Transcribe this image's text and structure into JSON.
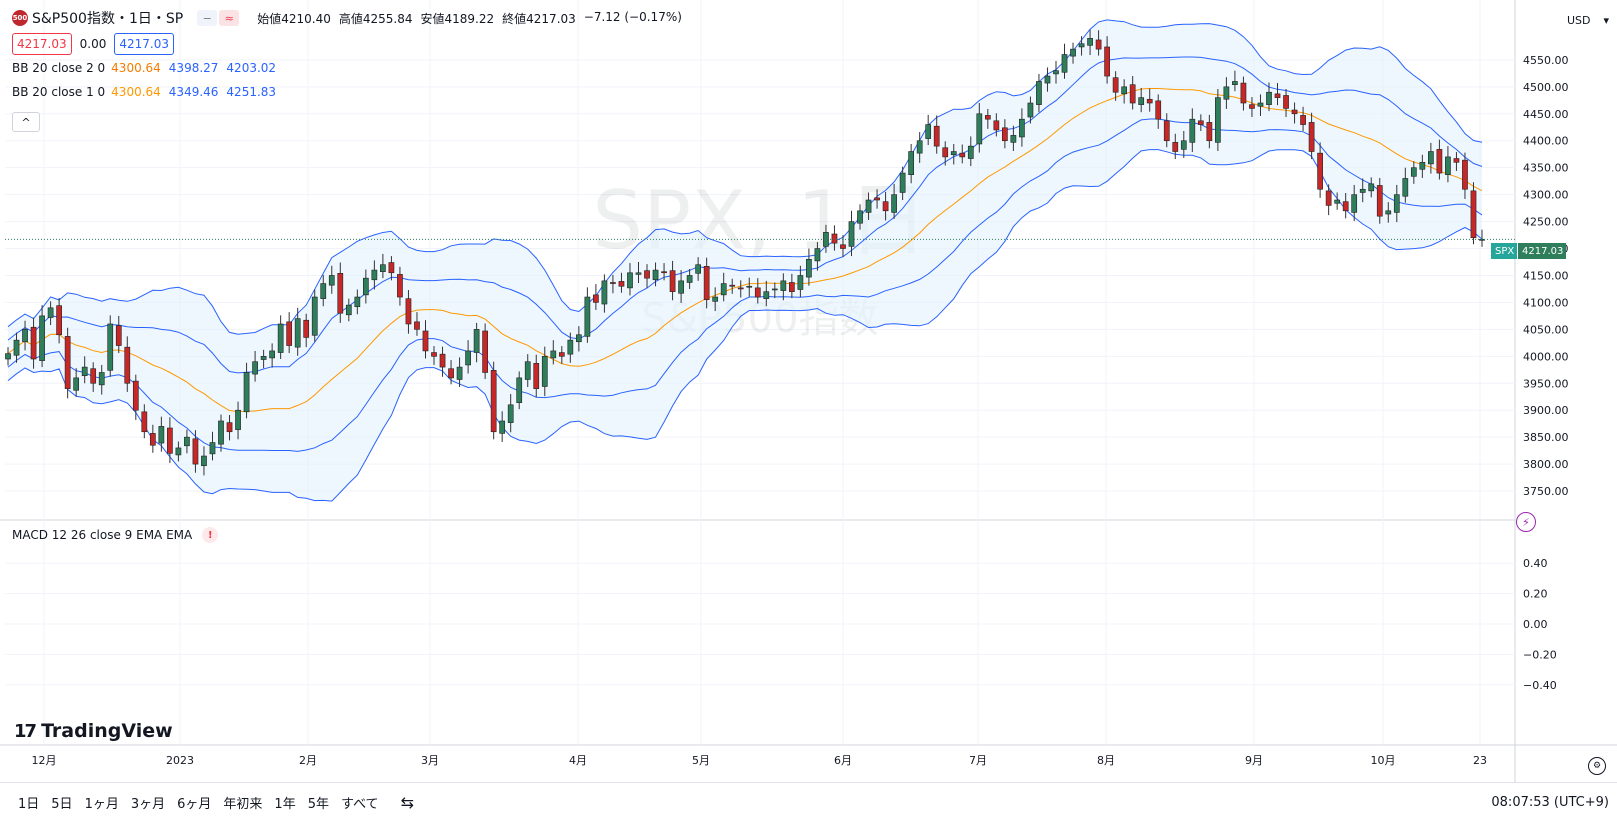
{
  "header": {
    "badge": "500",
    "title": "S&P500指数・1日・SP",
    "btn1": "−",
    "btn2": "≈",
    "ohlc": [
      {
        "label": "始値",
        "value": "4210.40"
      },
      {
        "label": "高値",
        "value": "4255.84"
      },
      {
        "label": "安値",
        "value": "4189.22"
      },
      {
        "label": "終値",
        "value": "4217.03"
      }
    ],
    "change": "−7.12 (−0.17%)"
  },
  "price_boxes": {
    "bid": "4217.03",
    "spread": "0.00",
    "ask": "4217.03"
  },
  "indicators": [
    {
      "name": "BB 20 close 2 0",
      "basis": "4300.64",
      "upper": "4398.27",
      "lower": "4203.02"
    },
    {
      "name": "BB 20 close 1 0",
      "basis": "4300.64",
      "upper": "4349.46",
      "lower": "4251.83"
    }
  ],
  "collapse_icon": "^",
  "watermark": {
    "line1": "SPX, 1日",
    "line2": "S&P500指数"
  },
  "macd_label": "MACD 12 26 close 9 EMA EMA",
  "macd_warning": "!",
  "currency": "USD",
  "currency_icon": "chevron-down-icon",
  "last_price": {
    "symbol": "SPX",
    "value": "4217.03"
  },
  "logo": {
    "mark": "17",
    "text": "TradingView"
  },
  "periods": [
    "1日",
    "5日",
    "1ヶ月",
    "3ヶ月",
    "6ヶ月",
    "年初来",
    "1年",
    "5年",
    "すべて"
  ],
  "calendar_icon": "date-range-icon",
  "clock": "08:07:53 (UTC+9)",
  "colors": {
    "up": "#2e7d5b",
    "down": "#c62828",
    "band_fill": "#e3f2fd",
    "band_line": "#2962ff",
    "basis": "#ff9800"
  },
  "chart_data": [
    {
      "type": "candlestick",
      "title": "S&P500指数・1日・SP",
      "ylim": [
        3700,
        4650
      ],
      "y_ticks": [
        "3750.00",
        "3800.00",
        "3850.00",
        "3900.00",
        "3950.00",
        "4000.00",
        "4050.00",
        "4100.00",
        "4150.00",
        "4200.00",
        "4250.00",
        "4300.00",
        "4350.00",
        "4400.00",
        "4450.00",
        "4500.00",
        "4550.00"
      ],
      "x_ticks": [
        "12月",
        "2023",
        "2月",
        "3月",
        "4月",
        "5月",
        "6月",
        "7月",
        "8月",
        "9月",
        "10月",
        "23"
      ],
      "grid": true,
      "close_series": [
        4005,
        4030,
        4050,
        3995,
        4075,
        4090,
        4040,
        3940,
        3960,
        3980,
        3950,
        3970,
        4060,
        4020,
        3950,
        3900,
        3860,
        3835,
        3870,
        3820,
        3830,
        3850,
        3800,
        3815,
        3840,
        3880,
        3860,
        3900,
        3970,
        3990,
        4000,
        4010,
        4060,
        4020,
        4070,
        4035,
        4110,
        4135,
        4150,
        4080,
        4095,
        4110,
        4145,
        4160,
        4170,
        4155,
        4110,
        4060,
        4050,
        4010,
        4000,
        3980,
        3960,
        3980,
        4010,
        4050,
        3970,
        3860,
        3880,
        3910,
        3960,
        3990,
        3940,
        4000,
        4010,
        4000,
        4030,
        4040,
        4110,
        4100,
        4140,
        4135,
        4130,
        4155,
        4155,
        4145,
        4160,
        4155,
        4120,
        4140,
        4150,
        4170,
        4105,
        4110,
        4135,
        4130,
        4125,
        4130,
        4110,
        4120,
        4125,
        4140,
        4120,
        4150,
        4180,
        4200,
        4230,
        4210,
        4200,
        4250,
        4270,
        4290,
        4290,
        4270,
        4300,
        4340,
        4380,
        4400,
        4430,
        4390,
        4370,
        4380,
        4370,
        4390,
        4450,
        4440,
        4420,
        4400,
        4410,
        4440,
        4470,
        4510,
        4520,
        4530,
        4560,
        4570,
        4580,
        4590,
        4570,
        4520,
        4490,
        4500,
        4470,
        4480,
        4470,
        4440,
        4400,
        4380,
        4400,
        4440,
        4430,
        4400,
        4480,
        4500,
        4510,
        4470,
        4460,
        4470,
        4490,
        4480,
        4460,
        4450,
        4430,
        4380,
        4310,
        4280,
        4290,
        4270,
        4300,
        4310,
        4320,
        4260,
        4270,
        4300,
        4330,
        4350,
        4360,
        4380,
        4340,
        4370,
        4360,
        4310,
        4220,
        4217.03
      ],
      "upper_band_2sd": "4398.27",
      "basis": "4300.64",
      "lower_band_2sd": "4203.02"
    },
    {
      "type": "line",
      "title": "MACD 12 26 close 9 EMA EMA",
      "y_ticks": [
        "0.40",
        "0.20",
        "0.00",
        "−0.20",
        "−0.40"
      ],
      "ylim": [
        -0.5,
        0.5
      ]
    }
  ]
}
